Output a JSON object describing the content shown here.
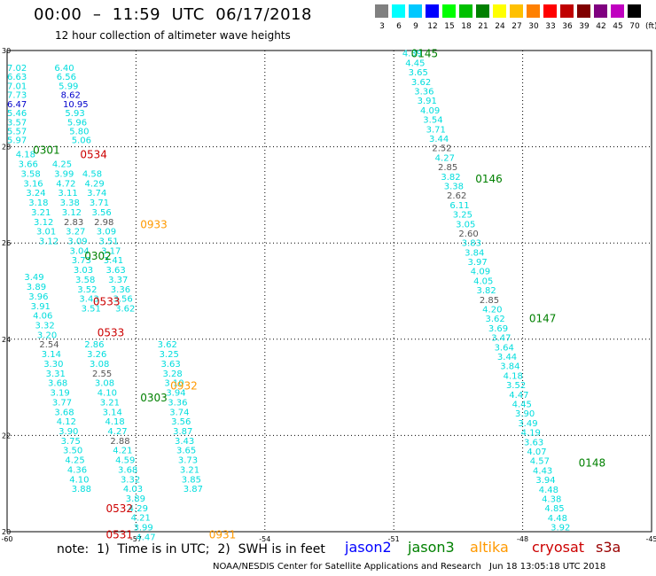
{
  "title": "00:00  –  11:59  UTC  06/17/2018",
  "subtitle": "12 hour collection of altimeter wave heights",
  "colors": {
    "jason2": "#0000ff",
    "jason3": "#008000",
    "altika": "#ff9900",
    "cryosat": "#cc0000",
    "s3a": "#990000",
    "text_cyan": "#00dddd",
    "grey": "#555555",
    "blue_val": "#0000cc",
    "frame": "#000000",
    "grid": "#000000"
  },
  "legend": {
    "unit": "(ft)",
    "items": [
      {
        "label": "3",
        "color": "#808080"
      },
      {
        "label": "6",
        "color": "#00ffff"
      },
      {
        "label": "9",
        "color": "#00c8ff"
      },
      {
        "label": "12",
        "color": "#0000ff"
      },
      {
        "label": "15",
        "color": "#00ff00"
      },
      {
        "label": "18",
        "color": "#00c000"
      },
      {
        "label": "21",
        "color": "#008000"
      },
      {
        "label": "24",
        "color": "#ffff00"
      },
      {
        "label": "27",
        "color": "#ffc000"
      },
      {
        "label": "30",
        "color": "#ff8000"
      },
      {
        "label": "33",
        "color": "#ff0000"
      },
      {
        "label": "36",
        "color": "#c00000"
      },
      {
        "label": "39",
        "color": "#800000"
      },
      {
        "label": "42",
        "color": "#800080"
      },
      {
        "label": "45",
        "color": "#c000c0"
      },
      {
        "label": "70",
        "color": "#000000"
      }
    ]
  },
  "axes": {
    "x_ticks": [
      "-60",
      "-57",
      "-54",
      "-51",
      "-48",
      "-45"
    ],
    "y_ticks": [
      "30",
      "28",
      "26",
      "24",
      "22",
      "20"
    ],
    "lon_range": [
      -60,
      -45
    ],
    "lat_range": [
      20,
      30
    ]
  },
  "note": "note:  1)  Time is in UTC;  2)  SWH is in feet",
  "sat_labels": [
    "jason2",
    "jason3",
    "altika",
    "cryosat",
    "s3a"
  ],
  "credit": "NOAA/NESDIS Center for Satellite Applications and Research",
  "credit_time": "Jun 18 13:05:18 UTC 2018",
  "time_labels": [
    {
      "text": "0145",
      "lon": -50.6,
      "lat": 29.95,
      "sat": "jason3"
    },
    {
      "text": "0146",
      "lon": -49.1,
      "lat": 27.35,
      "sat": "jason3"
    },
    {
      "text": "0147",
      "lon": -47.85,
      "lat": 24.45,
      "sat": "jason3"
    },
    {
      "text": "0148",
      "lon": -46.7,
      "lat": 21.45,
      "sat": "jason3"
    },
    {
      "text": "0301",
      "lon": -59.4,
      "lat": 27.95,
      "sat": "jason3"
    },
    {
      "text": "0302",
      "lon": -58.2,
      "lat": 25.75,
      "sat": "jason3"
    },
    {
      "text": "0303",
      "lon": -56.9,
      "lat": 22.8,
      "sat": "jason3"
    },
    {
      "text": "0534",
      "lon": -58.3,
      "lat": 27.85,
      "sat": "cryosat"
    },
    {
      "text": "0533",
      "lon": -58.0,
      "lat": 24.8,
      "sat": "cryosat"
    },
    {
      "text": "0533",
      "lon": -57.9,
      "lat": 24.15,
      "sat": "cryosat"
    },
    {
      "text": "0532",
      "lon": -57.7,
      "lat": 20.5,
      "sat": "cryosat"
    },
    {
      "text": "0531",
      "lon": -57.7,
      "lat": 19.95,
      "sat": "cryosat"
    },
    {
      "text": "0933",
      "lon": -56.9,
      "lat": 26.4,
      "sat": "altika"
    },
    {
      "text": "0932",
      "lon": -56.2,
      "lat": 23.05,
      "sat": "altika"
    },
    {
      "text": "0931",
      "lon": -55.3,
      "lat": 19.95,
      "sat": "altika"
    }
  ],
  "tracks": [
    {
      "name": "track-a",
      "start": [
        -60.0,
        29.65
      ],
      "step": [
        0.0,
        -0.188
      ],
      "values": [
        "7.02",
        "6.63",
        "7.01",
        "7.73",
        "6.47",
        "5.46",
        "3.57",
        "5.57",
        "5.97"
      ],
      "colors": [
        "c",
        "c",
        "c",
        "c",
        "b",
        "c",
        "c",
        "c",
        "c"
      ]
    },
    {
      "name": "track-b",
      "start": [
        -58.9,
        29.65
      ],
      "step": [
        0.05,
        -0.188
      ],
      "values": [
        "6.40",
        "6.56",
        "5.99",
        "8.62",
        "10.95",
        "5.93",
        "5.96",
        "5.80",
        "5.06"
      ],
      "colors": [
        "c",
        "c",
        "c",
        "b",
        "b",
        "c",
        "c",
        "c",
        "c"
      ]
    },
    {
      "name": "track-c",
      "start": [
        -59.8,
        27.85
      ],
      "step": [
        0.06,
        -0.2
      ],
      "values": [
        "4.18",
        "3.66",
        "3.58",
        "3.16",
        "3.24",
        "3.18",
        "3.21",
        "3.12",
        "3.01",
        "3.12"
      ],
      "colors": [
        "c",
        "c",
        "c",
        "c",
        "c",
        "c",
        "c",
        "c",
        "c",
        "c"
      ]
    },
    {
      "name": "track-d",
      "start": [
        -58.95,
        27.65
      ],
      "step": [
        0.045,
        -0.2
      ],
      "values": [
        "4.25",
        "3.99",
        "4.72",
        "3.11",
        "3.38",
        "3.12",
        "2.83",
        "3.27",
        "3.09",
        "3.04",
        "3.73",
        "3.03",
        "3.58",
        "3.52",
        "3.43",
        "3.51"
      ],
      "colors": [
        "c",
        "c",
        "c",
        "c",
        "c",
        "c",
        "g",
        "c",
        "c",
        "c",
        "c",
        "c",
        "c",
        "c",
        "c",
        "c"
      ]
    },
    {
      "name": "track-e",
      "start": [
        -58.9,
        29.4
      ],
      "step": [
        0.0,
        0.0
      ],
      "values": [],
      "colors": []
    },
    {
      "name": "track-f",
      "start": [
        -58.25,
        27.45
      ],
      "step": [
        0.055,
        -0.2
      ],
      "values": [
        "4.58",
        "4.29",
        "3.74",
        "3.71",
        "3.56",
        "2.98",
        "3.09",
        "3.51",
        "3.17",
        "3.41",
        "3.63",
        "3.37",
        "3.36",
        "3.56",
        "3.62"
      ],
      "colors": [
        "c",
        "c",
        "c",
        "c",
        "c",
        "g",
        "c",
        "c",
        "c",
        "c",
        "c",
        "c",
        "c",
        "c",
        "c"
      ]
    },
    {
      "name": "track-g",
      "start": [
        -59.6,
        25.3
      ],
      "step": [
        0.05,
        -0.2
      ],
      "values": [
        "3.49",
        "3.89",
        "3.96",
        "3.91",
        "4.06",
        "3.32",
        "3.20",
        "2.54",
        "3.14",
        "3.30",
        "3.31",
        "3.68",
        "3.19",
        "3.77",
        "3.68",
        "4.12",
        "3.90",
        "3.75",
        "3.50",
        "4.25",
        "4.36",
        "4.10",
        "3.88"
      ],
      "colors": [
        "c",
        "c",
        "c",
        "c",
        "c",
        "c",
        "c",
        "g",
        "c",
        "c",
        "c",
        "c",
        "c",
        "c",
        "c",
        "c",
        "c",
        "c",
        "c",
        "c",
        "c",
        "c",
        "c"
      ]
    },
    {
      "name": "track-h",
      "start": [
        -58.2,
        23.9
      ],
      "step": [
        0.06,
        -0.2
      ],
      "values": [
        "2.86",
        "3.26",
        "3.08",
        "2.55",
        "3.08",
        "4.10",
        "3.21",
        "3.14",
        "4.18",
        "4.27",
        "2.88",
        "4.21",
        "4.59",
        "3.68",
        "3.32",
        "4.03",
        "3.89",
        "4.29",
        "4.21",
        "3.99",
        "4.47"
      ],
      "colors": [
        "c",
        "c",
        "c",
        "g",
        "c",
        "c",
        "c",
        "c",
        "c",
        "c",
        "g",
        "c",
        "c",
        "c",
        "c",
        "c",
        "c",
        "c",
        "c",
        "c",
        "c"
      ]
    },
    {
      "name": "track-i",
      "start": [
        -56.5,
        23.9
      ],
      "step": [
        0.04,
        -0.2
      ],
      "values": [
        "3.62",
        "3.25",
        "3.63",
        "3.28",
        "3.10",
        "3.94",
        "3.36",
        "3.74",
        "3.56",
        "3.87",
        "3.43",
        "3.65",
        "3.73",
        "3.21",
        "3.85",
        "3.87"
      ],
      "colors": [
        "c",
        "c",
        "c",
        "c",
        "c",
        "c",
        "c",
        "c",
        "c",
        "c",
        "c",
        "c",
        "c",
        "c",
        "c",
        "c"
      ]
    },
    {
      "name": "track-j",
      "start": [
        -50.8,
        29.95
      ],
      "step": [
        0.069,
        -0.197
      ],
      "values": [
        "4.39",
        "4.45",
        "3.65",
        "3.62",
        "3.36",
        "3.91",
        "4.09",
        "3.54",
        "3.71",
        "3.44",
        "2.52",
        "4.27",
        "2.85",
        "3.82",
        "3.38",
        "2.62",
        "6.11",
        "3.25",
        "3.05",
        "2.60",
        "3.83",
        "3.84",
        "3.97",
        "4.09",
        "4.05",
        "3.82",
        "2.85",
        "4.20",
        "3.62",
        "3.69",
        "3.47",
        "3.64",
        "3.44",
        "3.84",
        "4.18",
        "3.52",
        "4.47",
        "4.45",
        "3.90",
        "3.49",
        "4.19",
        "3.63",
        "4.07",
        "4.57",
        "4.43",
        "3.94",
        "4.48",
        "4.38",
        "4.85",
        "4.48",
        "3.92"
      ],
      "colors": [
        "c",
        "c",
        "c",
        "c",
        "c",
        "c",
        "c",
        "c",
        "c",
        "c",
        "g",
        "c",
        "g",
        "c",
        "c",
        "g",
        "c",
        "c",
        "c",
        "g",
        "c",
        "c",
        "c",
        "c",
        "c",
        "c",
        "g",
        "c",
        "c",
        "c",
        "c",
        "c",
        "c",
        "c",
        "c",
        "c",
        "c",
        "c",
        "c",
        "c",
        "c",
        "c",
        "c",
        "c",
        "c",
        "c",
        "c",
        "c",
        "c",
        "c",
        "c"
      ]
    }
  ]
}
